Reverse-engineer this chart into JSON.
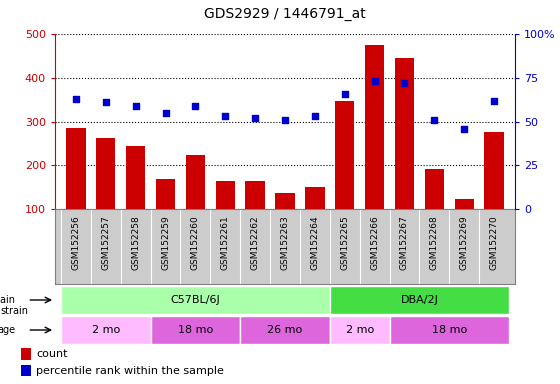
{
  "title": "GDS2929 / 1446791_at",
  "samples": [
    "GSM152256",
    "GSM152257",
    "GSM152258",
    "GSM152259",
    "GSM152260",
    "GSM152261",
    "GSM152262",
    "GSM152263",
    "GSM152264",
    "GSM152265",
    "GSM152266",
    "GSM152267",
    "GSM152268",
    "GSM152269",
    "GSM152270"
  ],
  "counts": [
    285,
    262,
    245,
    168,
    224,
    163,
    165,
    136,
    150,
    348,
    476,
    445,
    191,
    122,
    276
  ],
  "percentile_ranks": [
    63,
    61,
    59,
    55,
    59,
    53,
    52,
    51,
    53,
    66,
    73,
    72,
    51,
    46,
    62
  ],
  "ylim_left": [
    100,
    500
  ],
  "ylim_right": [
    0,
    100
  ],
  "yticks_left": [
    100,
    200,
    300,
    400,
    500
  ],
  "yticks_right": [
    0,
    25,
    50,
    75,
    100
  ],
  "bar_color": "#cc0000",
  "dot_color": "#0000cc",
  "strain_groups": [
    {
      "label": "C57BL/6J",
      "start": 0,
      "end": 9,
      "color": "#aaffaa"
    },
    {
      "label": "DBA/2J",
      "start": 9,
      "end": 15,
      "color": "#44dd44"
    }
  ],
  "age_groups": [
    {
      "label": "2 mo",
      "start": 0,
      "end": 3,
      "color": "#ffbbff"
    },
    {
      "label": "18 mo",
      "start": 3,
      "end": 6,
      "color": "#dd66dd"
    },
    {
      "label": "26 mo",
      "start": 6,
      "end": 9,
      "color": "#dd66dd"
    },
    {
      "label": "2 mo",
      "start": 9,
      "end": 11,
      "color": "#ffbbff"
    },
    {
      "label": "18 mo",
      "start": 11,
      "end": 15,
      "color": "#dd66dd"
    }
  ],
  "xtick_bg": "#cccccc",
  "plot_bg": "#ffffff",
  "grid_color": "black",
  "border_color": "black"
}
